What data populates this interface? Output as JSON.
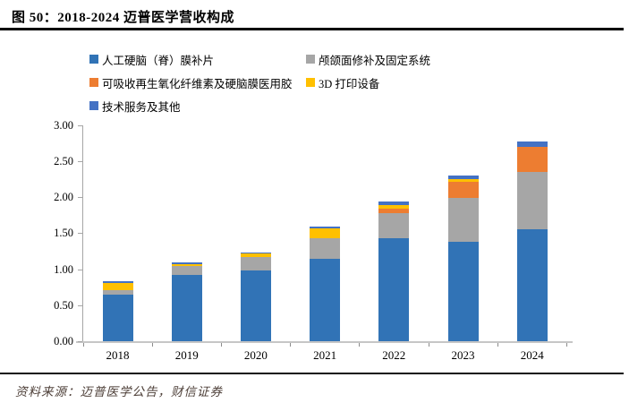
{
  "header": {
    "title": "图 50：2018-2024 迈普医学营收构成"
  },
  "footer": {
    "source": "资料来源：迈普医学公告，财信证券"
  },
  "colors": {
    "title_text": "#000000",
    "divider": "#000000",
    "axis_line": "#c6c6c6",
    "yaxis_line": "#a6a6a6",
    "tick": "#8c8c8c",
    "source_text": "#4e4039"
  },
  "chart_data": {
    "type": "bar",
    "stacked": true,
    "title": "",
    "xlabel": "",
    "ylabel": "",
    "categories": [
      "2018",
      "2019",
      "2020",
      "2021",
      "2022",
      "2023",
      "2024"
    ],
    "series": [
      {
        "name": "人工硬脑（脊）膜补片",
        "color": "#3173B6",
        "values": [
          0.65,
          0.93,
          0.99,
          1.15,
          1.44,
          1.38,
          1.56
        ]
      },
      {
        "name": "颅颌面修补及固定系统",
        "color": "#A6A6A6",
        "values": [
          0.06,
          0.12,
          0.19,
          0.29,
          0.34,
          0.62,
          0.79
        ]
      },
      {
        "name": "可吸收再生氧化纤维素及硬脑膜医用胶",
        "color": "#ED7D31",
        "values": [
          0.0,
          0.0,
          0.0,
          0.0,
          0.06,
          0.22,
          0.35
        ]
      },
      {
        "name": "3D 打印设备",
        "color": "#FFC000",
        "values": [
          0.1,
          0.03,
          0.05,
          0.13,
          0.06,
          0.04,
          0.0
        ]
      },
      {
        "name": "技术服务及其他",
        "color": "#4472C4",
        "values": [
          0.03,
          0.02,
          0.01,
          0.03,
          0.05,
          0.04,
          0.08
        ]
      }
    ],
    "totals": [
      0.84,
      1.1,
      1.24,
      1.6,
      1.95,
      2.3,
      2.78
    ],
    "ylim": [
      0.0,
      3.0
    ],
    "ytick_step": 0.5,
    "ytick_labels": [
      "0.00",
      "0.50",
      "1.00",
      "1.50",
      "2.00",
      "2.50",
      "3.00"
    ],
    "legend_position": "top",
    "legend_rows": [
      [
        0,
        1
      ],
      [
        2,
        3
      ],
      [
        4
      ]
    ],
    "grid": false
  }
}
